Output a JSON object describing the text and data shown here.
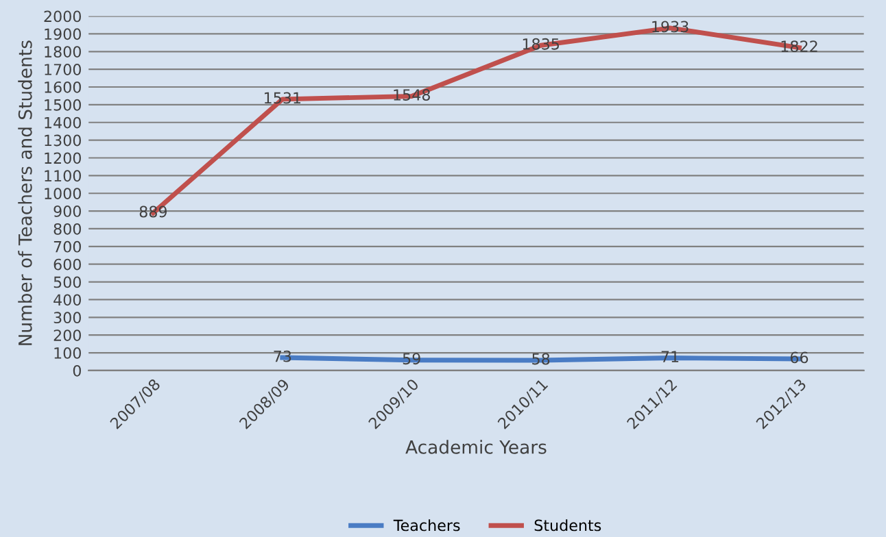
{
  "chart_data": {
    "type": "line",
    "categories": [
      "2007/08",
      "2008/09",
      "2009/10",
      "2010/11",
      "2011/12",
      "2012/13"
    ],
    "series": [
      {
        "name": "Teachers",
        "color": "#4a7cc4",
        "values": [
          null,
          73,
          59,
          58,
          71,
          66
        ]
      },
      {
        "name": "Students",
        "color": "#c0504d",
        "values": [
          889,
          1531,
          1548,
          1835,
          1933,
          1822
        ]
      }
    ],
    "xlabel": "Academic Years",
    "ylabel": "Number of Teachers and Students",
    "ylim": [
      0,
      2000
    ],
    "yticks": [
      0,
      100,
      200,
      300,
      400,
      500,
      600,
      700,
      800,
      900,
      1000,
      1100,
      1200,
      1300,
      1400,
      1500,
      1600,
      1700,
      1800,
      1900,
      2000
    ],
    "grid": "y",
    "legend": "bottom",
    "data_labels": true
  }
}
